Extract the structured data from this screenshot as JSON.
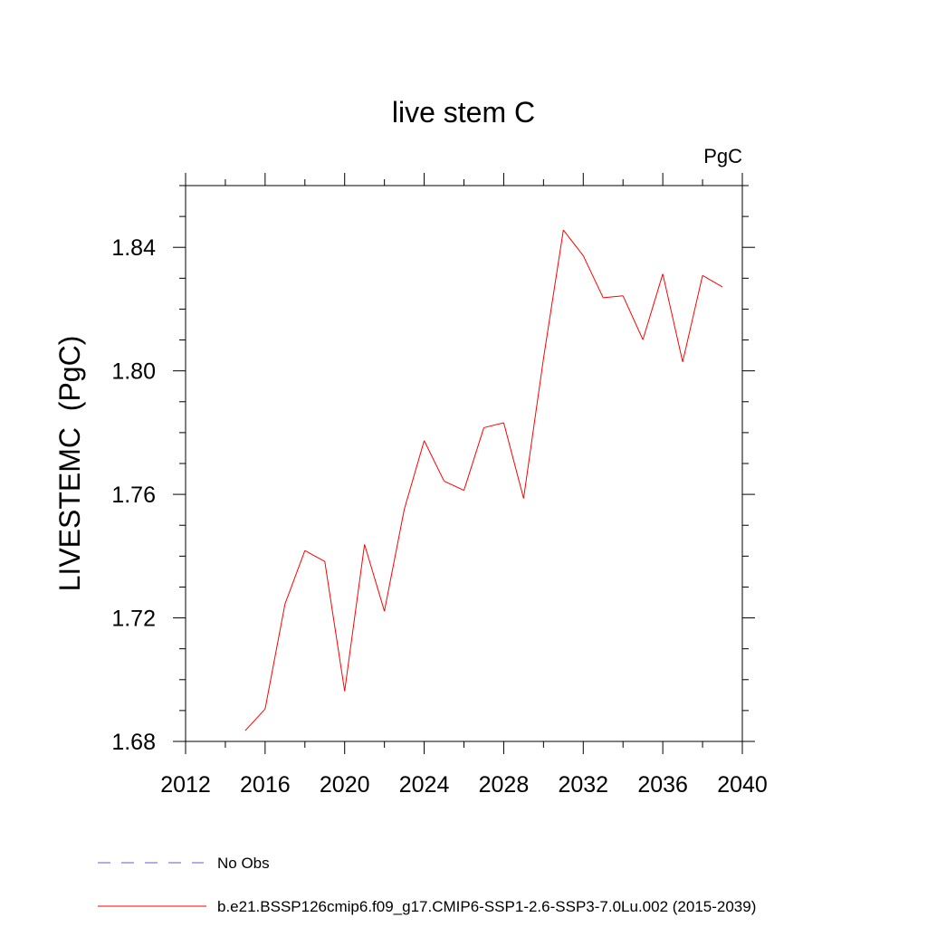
{
  "chart_data": {
    "type": "line",
    "title": "live stem C",
    "units_label": "PgC",
    "xlabel": "",
    "ylabel": "LIVESTEMC  (PgC)",
    "xlim": [
      2012,
      2040
    ],
    "ylim": [
      1.68,
      1.86
    ],
    "x_ticks": [
      2012,
      2016,
      2020,
      2024,
      2028,
      2032,
      2036,
      2040
    ],
    "y_ticks": [
      1.68,
      1.72,
      1.76,
      1.8,
      1.84
    ],
    "x_tick_labels": [
      "2012",
      "2016",
      "2020",
      "2024",
      "2028",
      "2032",
      "2036",
      "2040"
    ],
    "y_tick_labels": [
      "1.68",
      "1.72",
      "1.76",
      "1.80",
      "1.84"
    ],
    "x_minor_step": 2,
    "y_minor_step": 0.01,
    "grid": false,
    "legend_position": "bottom-left",
    "series": [
      {
        "name": "b.e21.BSSP126cmip6.f09_g17.CMIP6-SSP1-2.6-SSP3-7.0Lu.002 (2015-2039)",
        "color": "#ff0000",
        "style": "solid",
        "x": [
          2015,
          2016,
          2017,
          2018,
          2019,
          2020,
          2021,
          2022,
          2023,
          2024,
          2025,
          2026,
          2027,
          2028,
          2029,
          2030,
          2031,
          2032,
          2033,
          2034,
          2035,
          2036,
          2037,
          2038,
          2039
        ],
        "values": [
          1.6835,
          1.6905,
          1.7245,
          1.7418,
          1.7383,
          1.6963,
          1.7438,
          1.7222,
          1.7552,
          1.7774,
          1.7643,
          1.7613,
          1.7816,
          1.7832,
          1.7587,
          1.804,
          1.8456,
          1.8373,
          1.8237,
          1.8243,
          1.8101,
          1.8314,
          1.8029,
          1.8309,
          1.8272
        ]
      }
    ],
    "legend": [
      {
        "label": "No Obs",
        "color": "#6a5acd",
        "style": "dashed"
      },
      {
        "label": "b.e21.BSSP126cmip6.f09_g17.CMIP6-SSP1-2.6-SSP3-7.0Lu.002 (2015-2039)",
        "color": "#ff0000",
        "style": "solid"
      }
    ]
  }
}
